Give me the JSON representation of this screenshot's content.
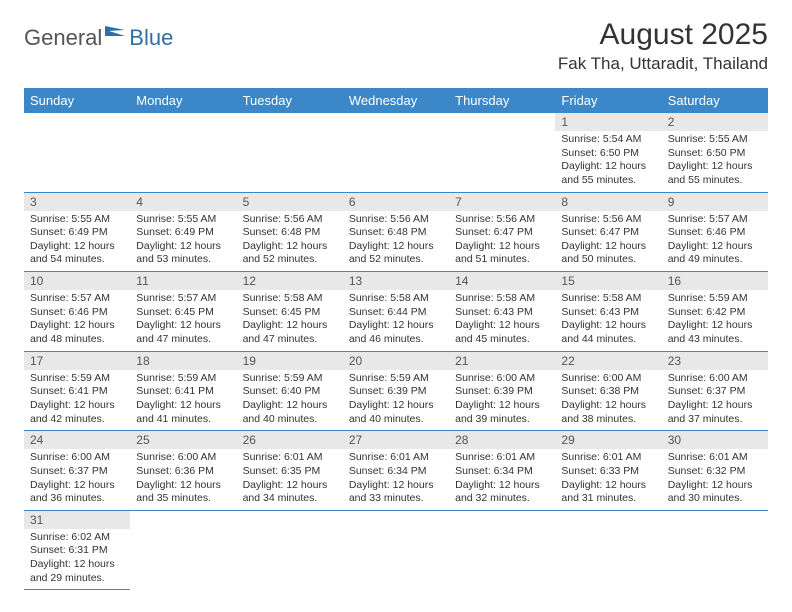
{
  "logo": {
    "general": "General",
    "blue": "Blue"
  },
  "title": "August 2025",
  "location": "Fak Tha, Uttaradit, Thailand",
  "colors": {
    "header_bg": "#3b87c8",
    "header_fg": "#ffffff",
    "daynum_bg": "#e8e8e8",
    "border": "#3b87c8",
    "logo_blue": "#2f6fa8"
  },
  "weekdays": [
    "Sunday",
    "Monday",
    "Tuesday",
    "Wednesday",
    "Thursday",
    "Friday",
    "Saturday"
  ],
  "first_weekday_index": 5,
  "days": [
    {
      "n": 1,
      "sunrise": "5:54 AM",
      "sunset": "6:50 PM",
      "dl_h": 12,
      "dl_m": 55
    },
    {
      "n": 2,
      "sunrise": "5:55 AM",
      "sunset": "6:50 PM",
      "dl_h": 12,
      "dl_m": 55
    },
    {
      "n": 3,
      "sunrise": "5:55 AM",
      "sunset": "6:49 PM",
      "dl_h": 12,
      "dl_m": 54
    },
    {
      "n": 4,
      "sunrise": "5:55 AM",
      "sunset": "6:49 PM",
      "dl_h": 12,
      "dl_m": 53
    },
    {
      "n": 5,
      "sunrise": "5:56 AM",
      "sunset": "6:48 PM",
      "dl_h": 12,
      "dl_m": 52
    },
    {
      "n": 6,
      "sunrise": "5:56 AM",
      "sunset": "6:48 PM",
      "dl_h": 12,
      "dl_m": 52
    },
    {
      "n": 7,
      "sunrise": "5:56 AM",
      "sunset": "6:47 PM",
      "dl_h": 12,
      "dl_m": 51
    },
    {
      "n": 8,
      "sunrise": "5:56 AM",
      "sunset": "6:47 PM",
      "dl_h": 12,
      "dl_m": 50
    },
    {
      "n": 9,
      "sunrise": "5:57 AM",
      "sunset": "6:46 PM",
      "dl_h": 12,
      "dl_m": 49
    },
    {
      "n": 10,
      "sunrise": "5:57 AM",
      "sunset": "6:46 PM",
      "dl_h": 12,
      "dl_m": 48
    },
    {
      "n": 11,
      "sunrise": "5:57 AM",
      "sunset": "6:45 PM",
      "dl_h": 12,
      "dl_m": 47
    },
    {
      "n": 12,
      "sunrise": "5:58 AM",
      "sunset": "6:45 PM",
      "dl_h": 12,
      "dl_m": 47
    },
    {
      "n": 13,
      "sunrise": "5:58 AM",
      "sunset": "6:44 PM",
      "dl_h": 12,
      "dl_m": 46
    },
    {
      "n": 14,
      "sunrise": "5:58 AM",
      "sunset": "6:43 PM",
      "dl_h": 12,
      "dl_m": 45
    },
    {
      "n": 15,
      "sunrise": "5:58 AM",
      "sunset": "6:43 PM",
      "dl_h": 12,
      "dl_m": 44
    },
    {
      "n": 16,
      "sunrise": "5:59 AM",
      "sunset": "6:42 PM",
      "dl_h": 12,
      "dl_m": 43
    },
    {
      "n": 17,
      "sunrise": "5:59 AM",
      "sunset": "6:41 PM",
      "dl_h": 12,
      "dl_m": 42
    },
    {
      "n": 18,
      "sunrise": "5:59 AM",
      "sunset": "6:41 PM",
      "dl_h": 12,
      "dl_m": 41
    },
    {
      "n": 19,
      "sunrise": "5:59 AM",
      "sunset": "6:40 PM",
      "dl_h": 12,
      "dl_m": 40
    },
    {
      "n": 20,
      "sunrise": "5:59 AM",
      "sunset": "6:39 PM",
      "dl_h": 12,
      "dl_m": 40
    },
    {
      "n": 21,
      "sunrise": "6:00 AM",
      "sunset": "6:39 PM",
      "dl_h": 12,
      "dl_m": 39
    },
    {
      "n": 22,
      "sunrise": "6:00 AM",
      "sunset": "6:38 PM",
      "dl_h": 12,
      "dl_m": 38
    },
    {
      "n": 23,
      "sunrise": "6:00 AM",
      "sunset": "6:37 PM",
      "dl_h": 12,
      "dl_m": 37
    },
    {
      "n": 24,
      "sunrise": "6:00 AM",
      "sunset": "6:37 PM",
      "dl_h": 12,
      "dl_m": 36
    },
    {
      "n": 25,
      "sunrise": "6:00 AM",
      "sunset": "6:36 PM",
      "dl_h": 12,
      "dl_m": 35
    },
    {
      "n": 26,
      "sunrise": "6:01 AM",
      "sunset": "6:35 PM",
      "dl_h": 12,
      "dl_m": 34
    },
    {
      "n": 27,
      "sunrise": "6:01 AM",
      "sunset": "6:34 PM",
      "dl_h": 12,
      "dl_m": 33
    },
    {
      "n": 28,
      "sunrise": "6:01 AM",
      "sunset": "6:34 PM",
      "dl_h": 12,
      "dl_m": 32
    },
    {
      "n": 29,
      "sunrise": "6:01 AM",
      "sunset": "6:33 PM",
      "dl_h": 12,
      "dl_m": 31
    },
    {
      "n": 30,
      "sunrise": "6:01 AM",
      "sunset": "6:32 PM",
      "dl_h": 12,
      "dl_m": 30
    },
    {
      "n": 31,
      "sunrise": "6:02 AM",
      "sunset": "6:31 PM",
      "dl_h": 12,
      "dl_m": 29
    }
  ],
  "labels": {
    "sunrise": "Sunrise:",
    "sunset": "Sunset:",
    "daylight": "Daylight:",
    "hours": "hours",
    "and": "and",
    "minutes": "minutes."
  }
}
